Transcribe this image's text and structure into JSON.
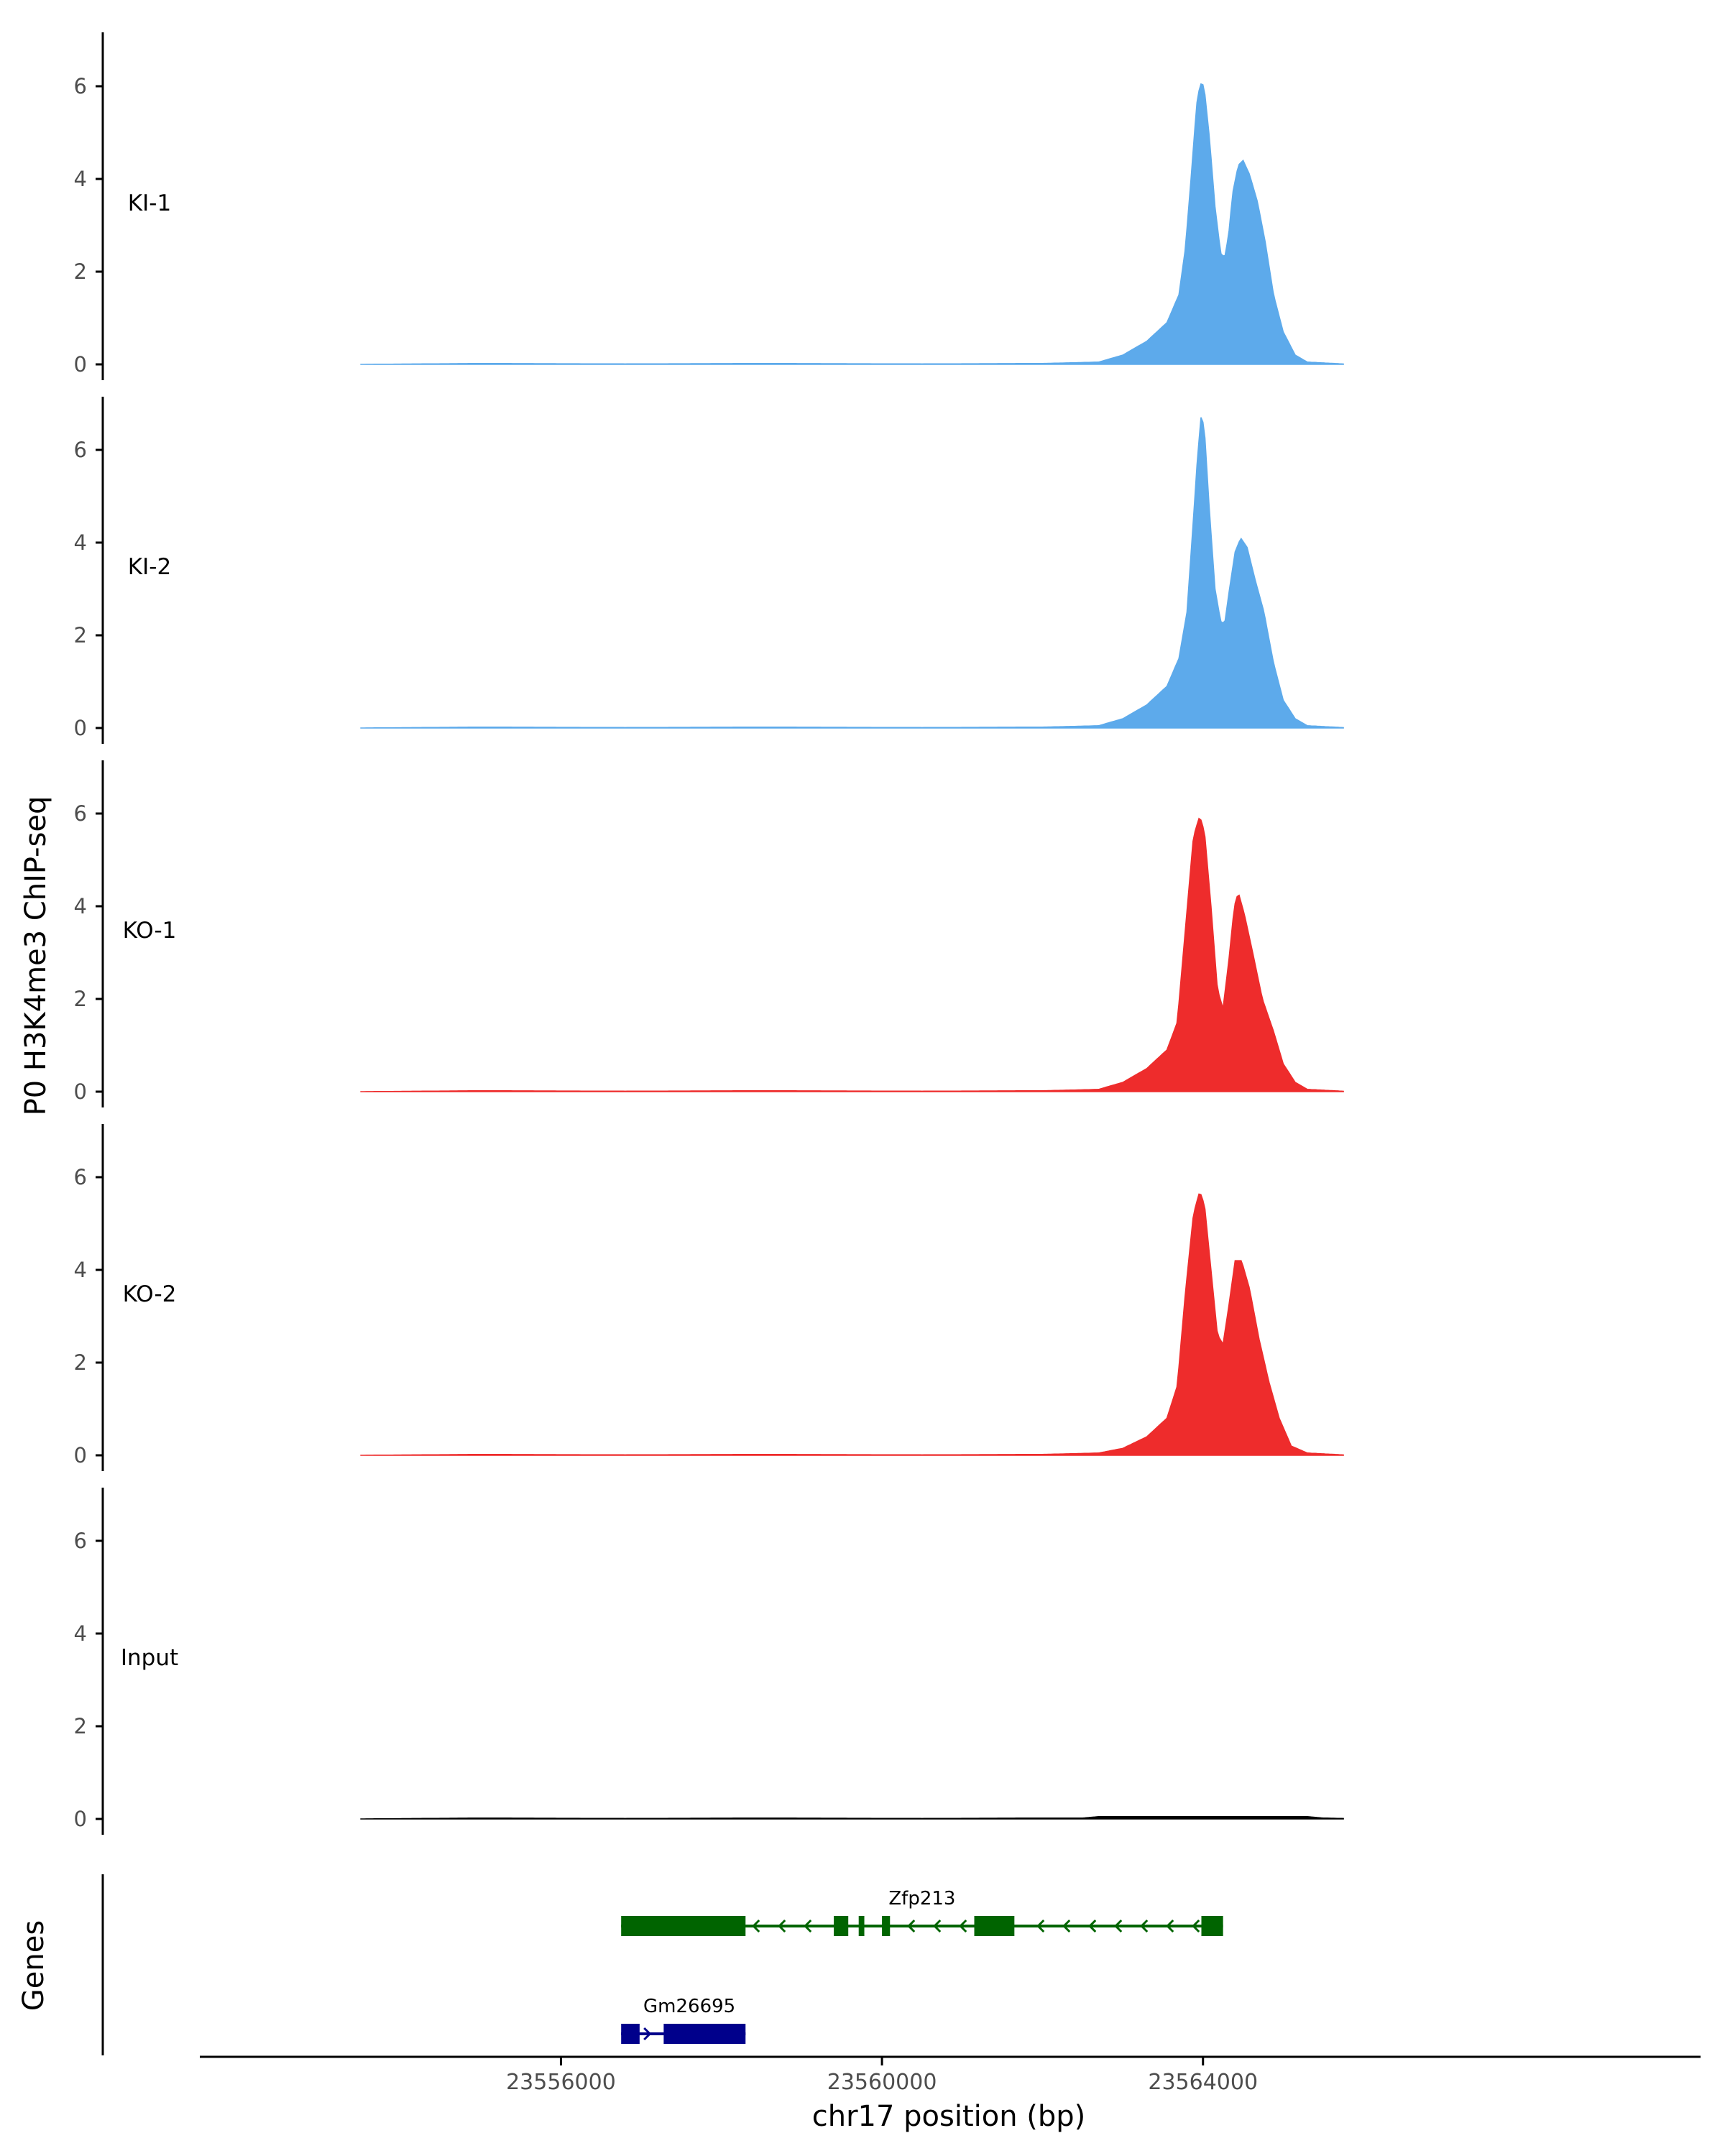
{
  "chart_data": {
    "type": "area",
    "ylabel": "P0 H3K4me3 ChIP-seq",
    "xlabel": "chr17 position (bp)",
    "ylim": [
      0,
      7
    ],
    "xlim": [
      23551500,
      23570200
    ],
    "y_ticks": [
      0,
      2,
      4,
      6
    ],
    "x_ticks": [
      23556000,
      23560000,
      23564000
    ],
    "x_tick_labels": [
      "23556000",
      "23560000",
      "23564000"
    ],
    "grid": false,
    "x_data_range": [
      23553500,
      23565750
    ],
    "baseline_knots": [
      [
        23553500,
        0
      ],
      [
        23555000,
        0.02
      ],
      [
        23556800,
        0.01
      ],
      [
        23558500,
        0.02
      ],
      [
        23560500,
        0.01
      ],
      [
        23562000,
        0.02
      ],
      [
        23562700,
        0.05
      ]
    ],
    "tail_knots": [
      [
        23565300,
        0.05
      ],
      [
        23565750,
        0.01
      ]
    ],
    "series": [
      {
        "name": "KI-1",
        "color": "#5DAAEB",
        "peak_knots": [
          [
            23562500,
            0.04
          ],
          [
            23563000,
            0.2
          ],
          [
            23563300,
            0.5
          ],
          [
            23563550,
            0.9
          ],
          [
            23563700,
            1.5
          ],
          [
            23563780,
            2.5
          ],
          [
            23563850,
            4.0
          ],
          [
            23563920,
            5.6
          ],
          [
            23563960,
            6.0
          ],
          [
            23563990,
            6.1
          ],
          [
            23564020,
            5.9
          ],
          [
            23564080,
            4.9
          ],
          [
            23564150,
            3.4
          ],
          [
            23564220,
            2.4
          ],
          [
            23564270,
            2.3
          ],
          [
            23564320,
            2.8
          ],
          [
            23564370,
            3.7
          ],
          [
            23564440,
            4.3
          ],
          [
            23564500,
            4.4
          ],
          [
            23564580,
            4.1
          ],
          [
            23564680,
            3.5
          ],
          [
            23564780,
            2.6
          ],
          [
            23564880,
            1.5
          ],
          [
            23565000,
            0.7
          ],
          [
            23565150,
            0.2
          ],
          [
            23565300,
            0.05
          ]
        ]
      },
      {
        "name": "KI-2",
        "color": "#5DAAEB",
        "peak_knots": [
          [
            23562500,
            0.04
          ],
          [
            23563000,
            0.2
          ],
          [
            23563300,
            0.5
          ],
          [
            23563550,
            0.9
          ],
          [
            23563700,
            1.5
          ],
          [
            23563800,
            2.5
          ],
          [
            23563860,
            4.0
          ],
          [
            23563930,
            5.8
          ],
          [
            23563980,
            6.8
          ],
          [
            23564020,
            6.4
          ],
          [
            23564080,
            4.7
          ],
          [
            23564150,
            3.0
          ],
          [
            23564220,
            2.3
          ],
          [
            23564270,
            2.25
          ],
          [
            23564330,
            3.0
          ],
          [
            23564400,
            3.8
          ],
          [
            23564470,
            4.1
          ],
          [
            23564550,
            3.9
          ],
          [
            23564650,
            3.2
          ],
          [
            23564760,
            2.5
          ],
          [
            23564880,
            1.4
          ],
          [
            23565000,
            0.6
          ],
          [
            23565150,
            0.2
          ],
          [
            23565300,
            0.05
          ]
        ]
      },
      {
        "name": "KO-1",
        "color": "#EE2C2C",
        "peak_knots": [
          [
            23562500,
            0.04
          ],
          [
            23563000,
            0.2
          ],
          [
            23563300,
            0.5
          ],
          [
            23563550,
            0.9
          ],
          [
            23563680,
            1.5
          ],
          [
            23563780,
            3.5
          ],
          [
            23563880,
            5.5
          ],
          [
            23563960,
            5.95
          ],
          [
            23564020,
            5.6
          ],
          [
            23564100,
            4.0
          ],
          [
            23564180,
            2.2
          ],
          [
            23564250,
            1.8
          ],
          [
            23564320,
            2.8
          ],
          [
            23564390,
            4.0
          ],
          [
            23564440,
            4.3
          ],
          [
            23564520,
            3.8
          ],
          [
            23564620,
            3.0
          ],
          [
            23564740,
            2.0
          ],
          [
            23564880,
            1.3
          ],
          [
            23565000,
            0.6
          ],
          [
            23565150,
            0.2
          ],
          [
            23565300,
            0.05
          ]
        ]
      },
      {
        "name": "KO-2",
        "color": "#EE2C2C",
        "peak_knots": [
          [
            23562500,
            0.04
          ],
          [
            23563000,
            0.15
          ],
          [
            23563300,
            0.4
          ],
          [
            23563550,
            0.8
          ],
          [
            23563680,
            1.5
          ],
          [
            23563780,
            3.5
          ],
          [
            23563880,
            5.2
          ],
          [
            23563960,
            5.7
          ],
          [
            23564020,
            5.4
          ],
          [
            23564100,
            4.0
          ],
          [
            23564180,
            2.6
          ],
          [
            23564250,
            2.4
          ],
          [
            23564320,
            3.2
          ],
          [
            23564400,
            4.2
          ],
          [
            23564480,
            4.2
          ],
          [
            23564580,
            3.6
          ],
          [
            23564700,
            2.5
          ],
          [
            23564820,
            1.6
          ],
          [
            23564950,
            0.8
          ],
          [
            23565100,
            0.2
          ],
          [
            23565300,
            0.05
          ]
        ]
      },
      {
        "name": "Input",
        "color": "#000000",
        "peak_knots": [
          [
            23562500,
            0.02
          ],
          [
            23565500,
            0.02
          ],
          [
            23565900,
            0.08
          ],
          [
            23566200,
            0.02
          ]
        ]
      }
    ],
    "genes_track": {
      "ylabel": "Genes",
      "genes": [
        {
          "name": "Zfp213",
          "color": "#006400",
          "strand": "-",
          "start": 23556750,
          "end": 23564250,
          "exons": [
            [
              23556750,
              23558300
            ],
            [
              23559400,
              23559580
            ],
            [
              23559710,
              23559780
            ],
            [
              23560000,
              23560100
            ],
            [
              23561150,
              23561650
            ],
            [
              23563980,
              23564250
            ]
          ]
        },
        {
          "name": "Gm26695",
          "color": "#00008B",
          "strand": "+",
          "start": 23556750,
          "end": 23558300,
          "exons": [
            [
              23556750,
              23556980
            ],
            [
              23557280,
              23558300
            ]
          ]
        }
      ]
    }
  }
}
